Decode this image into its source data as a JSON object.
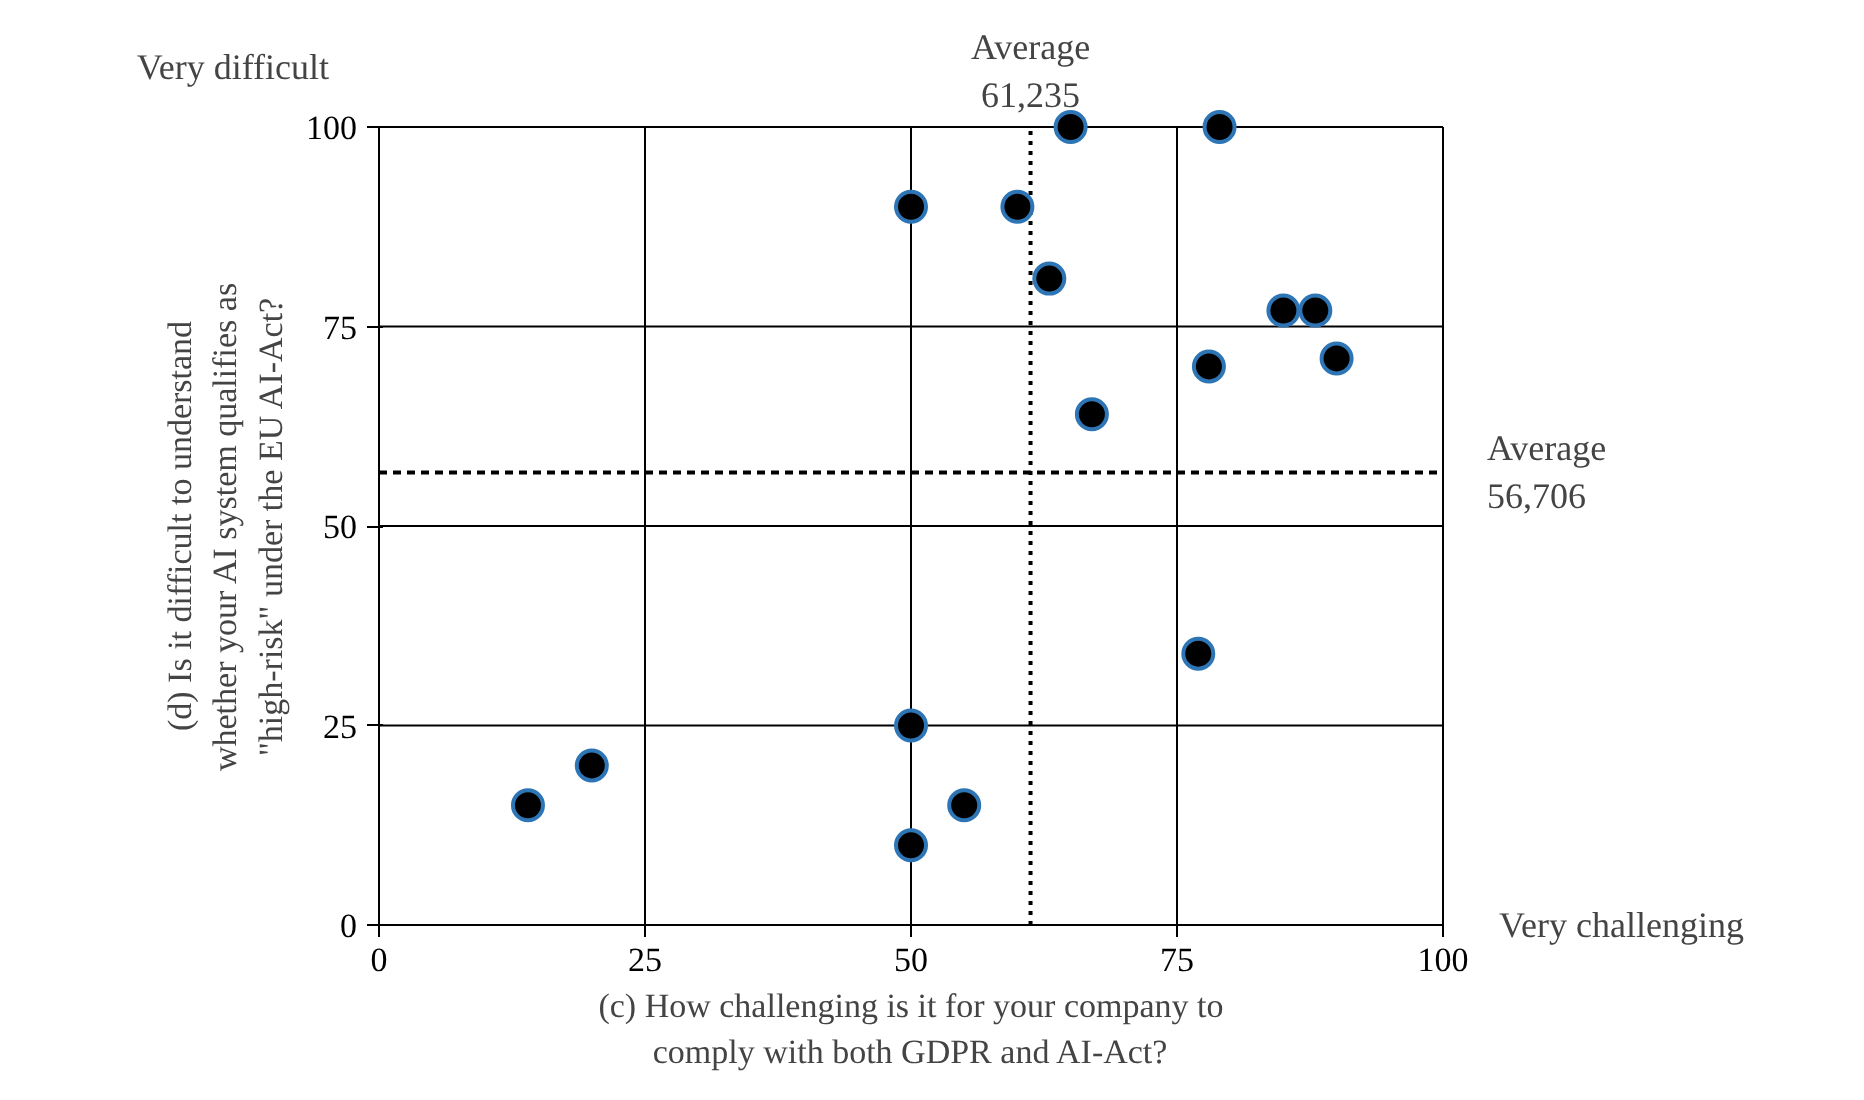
{
  "chart_data": {
    "type": "scatter",
    "xlabel": "(c) How challenging is it for your company to comply with both GDPR and AI-Act?",
    "ylabel": "(d) Is it difficult to understand whether your AI system qualifies as \"high-risk\" under the EU AI-Act?",
    "x": [
      65,
      79,
      50,
      60,
      63,
      85,
      88,
      78,
      90,
      67,
      77,
      50,
      20,
      14,
      55,
      50
    ],
    "values": [
      100,
      100,
      90,
      90,
      81,
      77,
      77,
      70,
      71,
      64,
      34,
      25,
      20,
      15,
      15,
      10
    ],
    "color": "#000000",
    "marker": "circle",
    "xlim": [
      0,
      100
    ],
    "ylim": [
      0,
      100
    ],
    "xticks": [
      0,
      25,
      50,
      75,
      100
    ],
    "yticks": [
      0,
      25,
      50,
      75,
      100
    ],
    "grid": true,
    "ref_lines": [
      {
        "axis": "x",
        "value": 61.235,
        "label": "Average 61,235",
        "line_style": "dotted"
      },
      {
        "axis": "y",
        "value": 56.706,
        "label": "Average 56,706",
        "line_style": "dashed"
      }
    ],
    "annotations": [
      "Very difficult",
      "Very challenging"
    ]
  }
}
